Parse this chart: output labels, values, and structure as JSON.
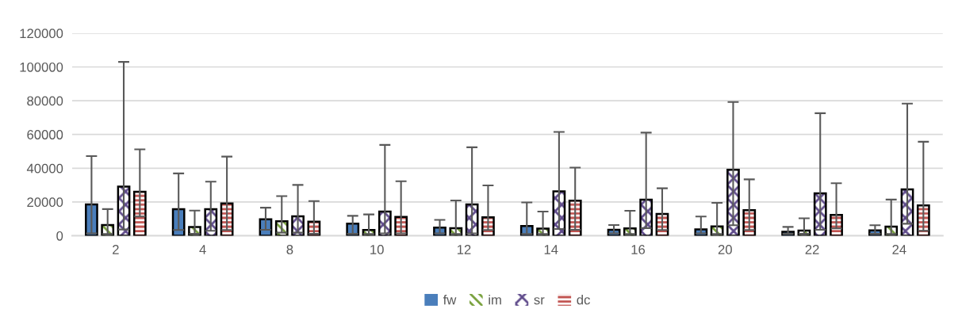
{
  "chart_data": {
    "type": "bar",
    "categories": [
      "2",
      "4",
      "8",
      "10",
      "12",
      "14",
      "16",
      "20",
      "22",
      "24"
    ],
    "series": [
      {
        "name": "fw",
        "color": "#4a7ebb",
        "values": [
          18500,
          15700,
          9700,
          7200,
          4800,
          5700,
          3500,
          3800,
          2300,
          3200
        ],
        "errors": [
          [
            1400,
            47200
          ],
          [
            3400,
            36900
          ],
          [
            3500,
            16600
          ],
          [
            1100,
            11800
          ],
          [
            1400,
            9400
          ],
          [
            1000,
            19700
          ],
          [
            1400,
            6300
          ],
          [
            1400,
            11400
          ],
          [
            1100,
            5200
          ],
          [
            1100,
            6200
          ]
        ]
      },
      {
        "name": "im",
        "color": "#77a03a",
        "values": [
          6300,
          5200,
          8600,
          3400,
          4500,
          4200,
          4300,
          5500,
          3100,
          5400
        ],
        "errors": [
          [
            1000,
            15800
          ],
          [
            1100,
            14900
          ],
          [
            1800,
            23500
          ],
          [
            1000,
            12600
          ],
          [
            1000,
            20900
          ],
          [
            1000,
            14300
          ],
          [
            1000,
            14800
          ],
          [
            1000,
            19500
          ],
          [
            1100,
            10300
          ],
          [
            1000,
            21400
          ]
        ]
      },
      {
        "name": "sr",
        "color": "#5f4b8b",
        "values": [
          29100,
          15700,
          11500,
          14300,
          18500,
          26300,
          21400,
          39100,
          25100,
          27500
        ],
        "errors": [
          [
            3700,
            103000
          ],
          [
            2900,
            32000
          ],
          [
            1800,
            30100
          ],
          [
            1400,
            53800
          ],
          [
            1400,
            52400
          ],
          [
            4000,
            61500
          ],
          [
            4500,
            61100
          ],
          [
            6200,
            79200
          ],
          [
            3500,
            72600
          ],
          [
            7100,
            78300
          ]
        ]
      },
      {
        "name": "dc",
        "color": "#c0504d",
        "values": [
          26000,
          19100,
          8300,
          11100,
          10900,
          20800,
          12900,
          15100,
          12300,
          18000
        ],
        "errors": [
          [
            11400,
            51200
          ],
          [
            3400,
            46900
          ],
          [
            1100,
            20500
          ],
          [
            1400,
            32300
          ],
          [
            3400,
            29800
          ],
          [
            3500,
            40400
          ],
          [
            3400,
            28100
          ],
          [
            3400,
            33400
          ],
          [
            4300,
            31100
          ],
          [
            2900,
            55700
          ]
        ]
      }
    ],
    "ylim": [
      0,
      120000
    ],
    "yticks": [
      0,
      20000,
      40000,
      60000,
      80000,
      100000,
      120000
    ],
    "grid": "y",
    "legend": "bottom"
  }
}
